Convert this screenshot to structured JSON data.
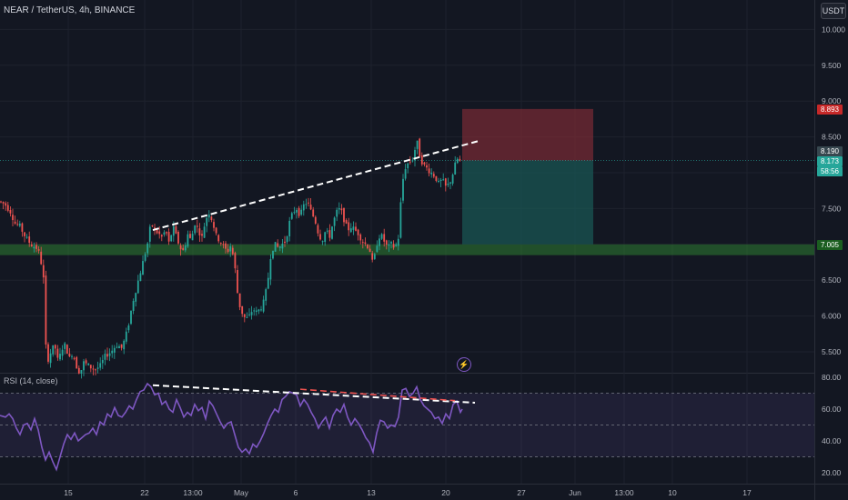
{
  "header": {
    "title": "NEAR / TetherUS, 4h, BINANCE",
    "unit": "USDT",
    "rsi_title": "RSI (14, close)"
  },
  "badges": {
    "stop": "8.893",
    "last": "8.190",
    "entry": "8.173",
    "countdown": "58:56",
    "support": "7.005"
  },
  "colors": {
    "up": "#26a69a",
    "down": "#ef5350",
    "rsi": "#7e57c2",
    "support_zone": "#2e7d32",
    "stop_zone": "#7b2b35",
    "target_zone": "#1a5553"
  },
  "chart_data": [
    {
      "type": "candlestick",
      "title": "NEAR / TetherUS, 4h, BINANCE",
      "y_ticks": [
        "10.000",
        "9.500",
        "9.000",
        "8.500",
        "8.000",
        "7.500",
        "7.000",
        "6.500",
        "6.000",
        "5.500"
      ],
      "ylim": [
        5.25,
        10.35
      ],
      "x_ticks": [
        "15",
        "22",
        "13:00",
        "May",
        "6",
        "13",
        "20",
        "27",
        "Jun",
        "13:00",
        "10",
        "17"
      ],
      "price_path": [
        [
          0,
          7.6
        ],
        [
          6,
          7.55
        ],
        [
          12,
          7.45
        ],
        [
          16,
          7.3
        ],
        [
          22,
          7.25
        ],
        [
          28,
          7.1
        ],
        [
          34,
          7.0
        ],
        [
          40,
          6.95
        ],
        [
          44,
          6.85
        ],
        [
          48,
          6.5
        ],
        [
          50,
          5.6
        ],
        [
          53,
          5.4
        ],
        [
          56,
          5.5
        ],
        [
          60,
          5.6
        ],
        [
          64,
          5.35
        ],
        [
          68,
          5.55
        ],
        [
          72,
          5.6
        ],
        [
          76,
          5.4
        ],
        [
          80,
          5.5
        ],
        [
          84,
          5.3
        ],
        [
          88,
          5.2
        ],
        [
          92,
          5.35
        ],
        [
          98,
          5.3
        ],
        [
          104,
          5.25
        ],
        [
          110,
          5.3
        ],
        [
          116,
          5.45
        ],
        [
          122,
          5.5
        ],
        [
          128,
          5.6
        ],
        [
          134,
          5.55
        ],
        [
          140,
          5.8
        ],
        [
          146,
          6.2
        ],
        [
          152,
          6.5
        ],
        [
          158,
          6.8
        ],
        [
          162,
          7.0
        ],
        [
          166,
          7.3
        ],
        [
          170,
          7.2
        ],
        [
          174,
          7.15
        ],
        [
          178,
          7.1
        ],
        [
          182,
          7.2
        ],
        [
          186,
          7.0
        ],
        [
          190,
          7.25
        ],
        [
          194,
          7.1
        ],
        [
          198,
          6.95
        ],
        [
          202,
          6.9
        ],
        [
          206,
          7.15
        ],
        [
          210,
          7.05
        ],
        [
          214,
          7.3
        ],
        [
          218,
          7.2
        ],
        [
          222,
          7.1
        ],
        [
          226,
          7.35
        ],
        [
          230,
          7.45
        ],
        [
          234,
          7.3
        ],
        [
          238,
          7.1
        ],
        [
          242,
          7.05
        ],
        [
          246,
          6.95
        ],
        [
          250,
          6.9
        ],
        [
          254,
          7.0
        ],
        [
          258,
          6.7
        ],
        [
          262,
          6.2
        ],
        [
          266,
          6.05
        ],
        [
          270,
          5.95
        ],
        [
          274,
          6.0
        ],
        [
          278,
          6.1
        ],
        [
          282,
          6.05
        ],
        [
          286,
          6.1
        ],
        [
          290,
          6.2
        ],
        [
          294,
          6.45
        ],
        [
          298,
          6.9
        ],
        [
          302,
          7.0
        ],
        [
          306,
          6.95
        ],
        [
          310,
          7.0
        ],
        [
          314,
          7.05
        ],
        [
          318,
          7.3
        ],
        [
          322,
          7.45
        ],
        [
          326,
          7.5
        ],
        [
          330,
          7.4
        ],
        [
          334,
          7.55
        ],
        [
          338,
          7.6
        ],
        [
          342,
          7.45
        ],
        [
          346,
          7.35
        ],
        [
          350,
          7.15
        ],
        [
          354,
          7.05
        ],
        [
          358,
          7.2
        ],
        [
          362,
          7.1
        ],
        [
          366,
          7.3
        ],
        [
          370,
          7.45
        ],
        [
          374,
          7.5
        ],
        [
          378,
          7.35
        ],
        [
          382,
          7.2
        ],
        [
          386,
          7.25
        ],
        [
          390,
          7.2
        ],
        [
          394,
          7.15
        ],
        [
          398,
          7.05
        ],
        [
          402,
          7.0
        ],
        [
          406,
          6.95
        ],
        [
          410,
          6.7
        ],
        [
          414,
          7.0
        ],
        [
          418,
          7.15
        ],
        [
          422,
          7.05
        ],
        [
          426,
          6.95
        ],
        [
          430,
          7.0
        ],
        [
          434,
          6.95
        ],
        [
          438,
          7.1
        ],
        [
          440,
          7.5
        ],
        [
          442,
          7.85
        ],
        [
          446,
          8.1
        ],
        [
          450,
          8.15
        ],
        [
          454,
          8.2
        ],
        [
          458,
          8.45
        ],
        [
          462,
          8.2
        ],
        [
          466,
          8.1
        ],
        [
          470,
          8.05
        ],
        [
          474,
          8.0
        ],
        [
          478,
          7.95
        ],
        [
          482,
          7.85
        ],
        [
          486,
          7.9
        ],
        [
          490,
          7.8
        ],
        [
          494,
          7.85
        ],
        [
          498,
          8.0
        ],
        [
          502,
          8.2
        ],
        [
          506,
          8.15
        ],
        [
          508,
          8.17
        ]
      ],
      "trendline": [
        [
          168,
          7.2
        ],
        [
          528,
          8.45
        ]
      ],
      "support_zone": [
        6.85,
        7.0
      ],
      "stop_zone": [
        8.17,
        8.89
      ],
      "target_zone": [
        7.0,
        8.17
      ]
    },
    {
      "type": "line",
      "title": "RSI (14, close)",
      "y_ticks": [
        "80.00",
        "60.00",
        "40.00",
        "20.00"
      ],
      "ylim": [
        15,
        82
      ],
      "bands": [
        30,
        50,
        70
      ],
      "values": [
        [
          0,
          56
        ],
        [
          6,
          55
        ],
        [
          10,
          57
        ],
        [
          14,
          54
        ],
        [
          18,
          48
        ],
        [
          22,
          44
        ],
        [
          26,
          50
        ],
        [
          30,
          51
        ],
        [
          34,
          47
        ],
        [
          38,
          54
        ],
        [
          42,
          47
        ],
        [
          46,
          36
        ],
        [
          50,
          28
        ],
        [
          54,
          33
        ],
        [
          58,
          27
        ],
        [
          62,
          22
        ],
        [
          66,
          30
        ],
        [
          70,
          38
        ],
        [
          74,
          44
        ],
        [
          78,
          41
        ],
        [
          82,
          45
        ],
        [
          86,
          40
        ],
        [
          90,
          42
        ],
        [
          94,
          44
        ],
        [
          98,
          45
        ],
        [
          102,
          48
        ],
        [
          106,
          44
        ],
        [
          110,
          52
        ],
        [
          114,
          50
        ],
        [
          118,
          57
        ],
        [
          122,
          55
        ],
        [
          126,
          61
        ],
        [
          130,
          56
        ],
        [
          134,
          55
        ],
        [
          138,
          58
        ],
        [
          142,
          62
        ],
        [
          146,
          60
        ],
        [
          150,
          66
        ],
        [
          154,
          71
        ],
        [
          158,
          72
        ],
        [
          162,
          76
        ],
        [
          166,
          74
        ],
        [
          170,
          69
        ],
        [
          174,
          70
        ],
        [
          178,
          63
        ],
        [
          182,
          65
        ],
        [
          186,
          60
        ],
        [
          190,
          58
        ],
        [
          194,
          66
        ],
        [
          198,
          61
        ],
        [
          202,
          55
        ],
        [
          206,
          58
        ],
        [
          210,
          56
        ],
        [
          214,
          63
        ],
        [
          218,
          59
        ],
        [
          222,
          61
        ],
        [
          226,
          54
        ],
        [
          230,
          65
        ],
        [
          234,
          62
        ],
        [
          238,
          57
        ],
        [
          242,
          52
        ],
        [
          246,
          48
        ],
        [
          250,
          51
        ],
        [
          254,
          52
        ],
        [
          258,
          44
        ],
        [
          262,
          36
        ],
        [
          266,
          33
        ],
        [
          270,
          35
        ],
        [
          274,
          32
        ],
        [
          278,
          38
        ],
        [
          282,
          36
        ],
        [
          286,
          40
        ],
        [
          290,
          45
        ],
        [
          294,
          51
        ],
        [
          298,
          56
        ],
        [
          302,
          60
        ],
        [
          306,
          58
        ],
        [
          310,
          66
        ],
        [
          314,
          68
        ],
        [
          318,
          71
        ],
        [
          322,
          70
        ],
        [
          326,
          69
        ],
        [
          330,
          62
        ],
        [
          334,
          66
        ],
        [
          338,
          63
        ],
        [
          342,
          58
        ],
        [
          346,
          54
        ],
        [
          350,
          48
        ],
        [
          354,
          52
        ],
        [
          358,
          55
        ],
        [
          362,
          48
        ],
        [
          366,
          56
        ],
        [
          370,
          60
        ],
        [
          374,
          58
        ],
        [
          378,
          63
        ],
        [
          382,
          55
        ],
        [
          386,
          50
        ],
        [
          390,
          54
        ],
        [
          394,
          51
        ],
        [
          398,
          47
        ],
        [
          402,
          42
        ],
        [
          406,
          39
        ],
        [
          410,
          33
        ],
        [
          414,
          45
        ],
        [
          418,
          53
        ],
        [
          422,
          52
        ],
        [
          426,
          48
        ],
        [
          430,
          50
        ],
        [
          434,
          49
        ],
        [
          438,
          55
        ],
        [
          442,
          72
        ],
        [
          446,
          73
        ],
        [
          450,
          68
        ],
        [
          454,
          70
        ],
        [
          458,
          74
        ],
        [
          462,
          66
        ],
        [
          466,
          62
        ],
        [
          470,
          60
        ],
        [
          474,
          58
        ],
        [
          478,
          54
        ],
        [
          482,
          55
        ],
        [
          486,
          51
        ],
        [
          490,
          57
        ],
        [
          494,
          54
        ],
        [
          498,
          63
        ],
        [
          502,
          65
        ],
        [
          506,
          58
        ],
        [
          508,
          60
        ]
      ],
      "trendline": [
        [
          168,
          75
        ],
        [
          522,
          64
        ]
      ]
    }
  ]
}
